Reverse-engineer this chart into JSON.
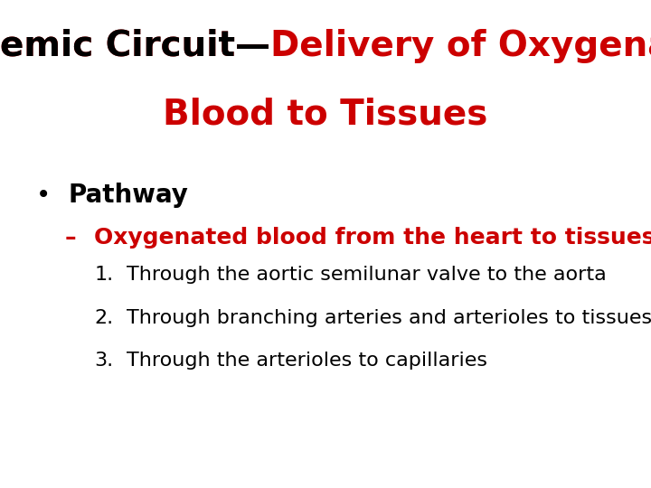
{
  "background_color": "#ffffff",
  "title_black_part": "Systemic Circuit—",
  "title_red_part1": "Delivery of Oxygenated",
  "title_red_part2": "Blood to Tissues",
  "title_color_black": "#000000",
  "title_color_red": "#cc0000",
  "title_fontsize": 28,
  "title_line2_fontsize": 28,
  "bullet_text": "Pathway",
  "bullet_color": "#000000",
  "bullet_fontsize": 20,
  "sub_dash": "–",
  "sub_bullet_text": "Oxygenated blood from the heart to tissues",
  "sub_bullet_color": "#cc0000",
  "sub_bullet_fontsize": 18,
  "numbered_items": [
    "Through the aortic semilunar valve to the aorta",
    "Through branching arteries and arterioles to tissues",
    "Through the arterioles to capillaries"
  ],
  "numbered_color": "#000000",
  "numbered_fontsize": 16,
  "fig_width": 7.2,
  "fig_height": 5.4,
  "dpi": 100
}
